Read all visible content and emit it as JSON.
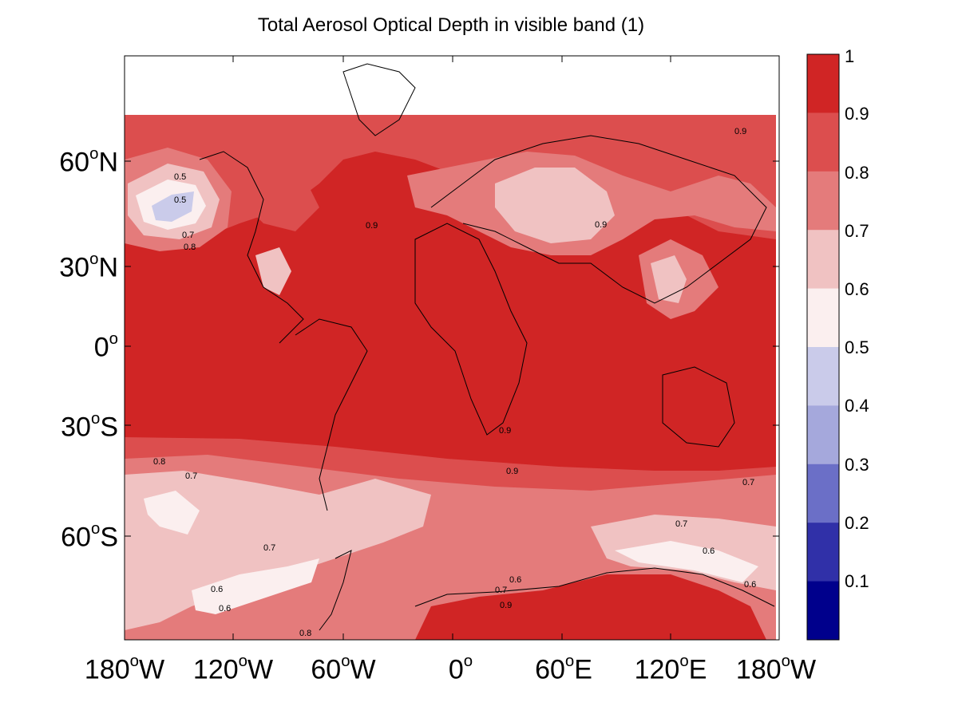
{
  "title": "Total Aerosol Optical Depth in visible band (1)",
  "lat_axis": {
    "ticks": [
      {
        "deg": "60",
        "hem": "N"
      },
      {
        "deg": "30",
        "hem": "N"
      },
      {
        "deg": "0",
        "hem": ""
      },
      {
        "deg": "30",
        "hem": "S"
      },
      {
        "deg": "60",
        "hem": "S"
      }
    ]
  },
  "lon_axis": {
    "ticks": [
      {
        "deg": "180",
        "hem": "W"
      },
      {
        "deg": "120",
        "hem": "W"
      },
      {
        "deg": "60",
        "hem": "W"
      },
      {
        "deg": "0",
        "hem": ""
      },
      {
        "deg": "60",
        "hem": "E"
      },
      {
        "deg": "120",
        "hem": "E"
      },
      {
        "deg": "180",
        "hem": "W"
      }
    ]
  },
  "colorbar": {
    "labels": [
      "1",
      "0.9",
      "0.8",
      "0.7",
      "0.6",
      "0.5",
      "0.4",
      "0.3",
      "0.2",
      "0.1"
    ],
    "colors": [
      "#d02525",
      "#dc4e4e",
      "#e47b7b",
      "#f0c2c2",
      "#fbefef",
      "#cacbea",
      "#a5a8dc",
      "#6b6fc7",
      "#3030a8",
      "#00008c"
    ]
  },
  "contour_labels": [
    "0.9",
    "0.8",
    "0.7",
    "0.6",
    "0.5"
  ]
}
